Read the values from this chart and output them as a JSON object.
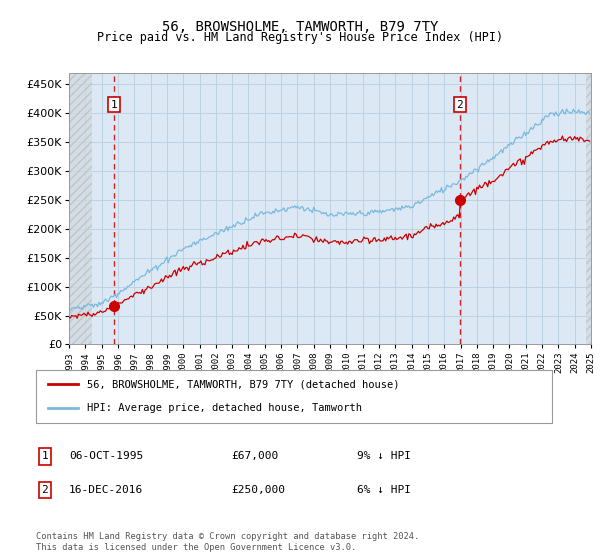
{
  "title": "56, BROWSHOLME, TAMWORTH, B79 7TY",
  "subtitle": "Price paid vs. HM Land Registry's House Price Index (HPI)",
  "ylim": [
    0,
    470000
  ],
  "yticks": [
    0,
    50000,
    100000,
    150000,
    200000,
    250000,
    300000,
    350000,
    400000,
    450000
  ],
  "x_start_year": 1993,
  "x_end_year": 2025,
  "transaction1_date": 1995.77,
  "transaction1_price": 67000,
  "transaction2_date": 2016.96,
  "transaction2_price": 250000,
  "legend_line1": "56, BROWSHOLME, TAMWORTH, B79 7TY (detached house)",
  "legend_line2": "HPI: Average price, detached house, Tamworth",
  "footnote": "Contains HM Land Registry data © Crown copyright and database right 2024.\nThis data is licensed under the Open Government Licence v3.0.",
  "hpi_color": "#7ab8e0",
  "price_color": "#cc0000",
  "grid_color": "#b8cfe0",
  "background_plot": "#dce9f5",
  "hatch_color": "#bbbbbb",
  "info1_date": "06-OCT-1995",
  "info1_price": "£67,000",
  "info1_hpi": "9% ↓ HPI",
  "info2_date": "16-DEC-2016",
  "info2_price": "£250,000",
  "info2_hpi": "6% ↓ HPI"
}
